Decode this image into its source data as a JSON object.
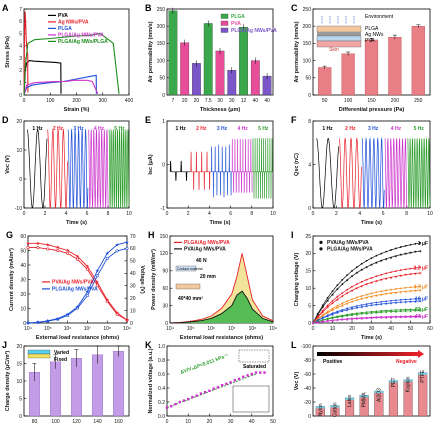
{
  "panels": {
    "A": {
      "label": "A",
      "xlabel": "Strain (%)",
      "ylabel": "Stress (kPa)",
      "xticks": [
        "0",
        "100",
        "200",
        "300",
        "400"
      ],
      "yticks": [
        "0",
        "1",
        "2",
        "3",
        "4",
        "5",
        "6",
        "7"
      ],
      "legend": [
        "PVA",
        "Ag NWs/PVA",
        "PLGA",
        "PLGA/Ag NWs/PVA",
        "PLGA/Ag NWs/PLGA"
      ]
    },
    "B": {
      "label": "B",
      "xlabel": "Thickness (μm)",
      "ylabel": "Air permeability (mm/s)",
      "xticks": [
        "7",
        "20",
        "20",
        "7.5",
        "30",
        "30",
        "12",
        "40",
        "40"
      ],
      "yticks": [
        "0",
        "50",
        "100",
        "150",
        "200",
        "250"
      ],
      "legend": [
        "PLGA",
        "PVA",
        "PLGA/Ag NWs/PVA"
      ]
    },
    "C": {
      "label": "C",
      "xlabel": "Differential pressure (Pa)",
      "ylabel": "Air permeability (mm/s)",
      "xticks": [
        "50",
        "100",
        "150",
        "200",
        "250"
      ],
      "yticks": [
        "0",
        "50",
        "100",
        "150",
        "200",
        "250"
      ],
      "annotations": [
        "Environment",
        "PLGA",
        "Ag NWs",
        "PVA",
        "Skin"
      ]
    },
    "D": {
      "label": "D",
      "xlabel": "Time (s)",
      "ylabel": "Voc (V)",
      "xticks": [
        "0",
        "2",
        "4",
        "6",
        "8",
        "10"
      ],
      "yticks": [
        "-10",
        "0",
        "10",
        "20"
      ],
      "freqs": [
        "1 Hz",
        "2 Hz",
        "3 Hz",
        "4 Hz",
        "5 Hz"
      ]
    },
    "E": {
      "label": "E",
      "xlabel": "Time (s)",
      "ylabel": "Isc (μA)",
      "xticks": [
        "0",
        "2",
        "4",
        "6",
        "8",
        "10"
      ],
      "yticks": [
        "-1",
        "0",
        "1"
      ],
      "freqs": [
        "1 Hz",
        "2 Hz",
        "3 Hz",
        "4 Hz",
        "5 Hz"
      ]
    },
    "F": {
      "label": "F",
      "xlabel": "Time (s)",
      "ylabel": "Qsc (nC)",
      "xticks": [
        "0",
        "2",
        "4",
        "6",
        "8",
        "10"
      ],
      "yticks": [
        "0",
        "4",
        "8"
      ],
      "freqs": [
        "1 Hz",
        "2 Hz",
        "3 Hz",
        "4 Hz",
        "5 Hz"
      ]
    },
    "G": {
      "label": "G",
      "xlabel": "External load resistance (ohms)",
      "ylabel": "Current density (mA/m²)",
      "ylabel2": "Voltage (V)",
      "xticks": [
        "10⁴",
        "10⁵",
        "10⁶",
        "10⁷",
        "10⁸",
        "10⁹"
      ],
      "yticks": [
        "0",
        "10",
        "20",
        "30",
        "40",
        "50",
        "60"
      ],
      "yticks2": [
        "0",
        "10",
        "20",
        "30",
        "40",
        "50",
        "60",
        "70"
      ],
      "legend": [
        "PVA/Ag NWs/PVA",
        "PLGA/Ag NWs/PVA"
      ]
    },
    "H": {
      "label": "H",
      "xlabel": "External load resistance (ohms)",
      "ylabel": "Power density (mW/m²)",
      "xticks": [
        "10⁴",
        "10⁵",
        "10⁶",
        "10⁷",
        "10⁸",
        "10⁹"
      ],
      "yticks": [
        "0",
        "30",
        "60",
        "90",
        "120",
        "150"
      ],
      "legend": [
        "PLGA/Ag NWs/PVA",
        "PVA/Ag NWs/PVA"
      ],
      "annotations": [
        "40 N",
        "Contact material",
        "20 mm",
        "40*40 mm²"
      ]
    },
    "I": {
      "label": "I",
      "xlabel": "Time (s)",
      "ylabel": "Charging voltage (V)",
      "xticks": [
        "0",
        "10",
        "20",
        "30",
        "40",
        "50",
        "60"
      ],
      "yticks": [
        "0",
        "5",
        "10",
        "15",
        "20",
        "25"
      ],
      "legend": [
        "PVA/Ag NWs/PVA",
        "PLGA/Ag NWs/PVA"
      ],
      "caps": [
        "1 μF",
        "2.2 μF",
        "4.7 μF",
        "10 μF",
        "22 μF",
        "47 μF"
      ]
    },
    "J": {
      "label": "J",
      "xlabel": "Total thickness (μm)",
      "ylabel": "Charge density (μC/m²)",
      "xticks": [
        "80",
        "100",
        "120",
        "140",
        "160"
      ],
      "yticks": [
        "0",
        "5",
        "10",
        "15",
        "20"
      ],
      "annotations": [
        "Varied",
        "Fixed"
      ]
    },
    "K": {
      "label": "K",
      "xlabel": "Pressure (kPa)",
      "ylabel": "Normalized voltage (a.u.)",
      "xticks": [
        "0",
        "10",
        "20",
        "30",
        "40",
        "50"
      ],
      "yticks": [
        "0.0",
        "0.2",
        "0.4",
        "0.6",
        "0.8",
        "1.0"
      ],
      "annotations": [
        "ΔV/V₀ΔP=0.011 kPa⁻¹",
        "Saturated"
      ]
    },
    "L": {
      "label": "L",
      "ylabel": "Voc (V)",
      "yticks": [
        "0",
        "-20",
        "-40",
        "-60",
        "-80",
        "-100"
      ],
      "annotations": [
        "Positive",
        "Negative"
      ]
    }
  },
  "chart_data": [
    {
      "panel": "A",
      "type": "line",
      "xlim": [
        0,
        400
      ],
      "ylim": [
        0,
        7
      ],
      "series": [
        {
          "name": "PVA",
          "color": "#000000",
          "x": [
            0,
            5,
            10,
            20,
            40,
            80,
            120,
            140,
            141
          ],
          "y": [
            0,
            2.0,
            2.6,
            2.8,
            2.75,
            2.7,
            2.65,
            2.6,
            0.1
          ]
        },
        {
          "name": "Ag NWs/PVA",
          "color": "#e8202a",
          "x": [
            0,
            2,
            4,
            6,
            8,
            10,
            12,
            14,
            15
          ],
          "y": [
            0,
            5.0,
            6.8,
            6.0,
            4.8,
            4.0,
            3.6,
            3.3,
            0.2
          ]
        },
        {
          "name": "PLGA",
          "color": "#1e4fd8",
          "x": [
            0,
            10,
            30,
            60,
            100,
            150,
            200,
            250,
            275,
            276
          ],
          "y": [
            0,
            0.6,
            0.8,
            0.9,
            1.0,
            1.1,
            1.3,
            1.5,
            1.6,
            0.1
          ]
        },
        {
          "name": "PLGA/Ag NWs/PVA",
          "color": "#cc33cc",
          "x": [
            0,
            10,
            40,
            80,
            120,
            160,
            190,
            220,
            240,
            260,
            281
          ],
          "y": [
            0,
            0.8,
            1.0,
            1.05,
            1.1,
            1.1,
            1.2,
            1.2,
            1.2,
            1.1,
            0.1
          ]
        },
        {
          "name": "PLGA/Ag NWs/PLGA",
          "color": "#1a8c1a",
          "x": [
            0,
            5,
            15,
            40,
            100,
            200,
            250,
            290,
            310,
            340,
            362
          ],
          "y": [
            0,
            2.4,
            4.2,
            4.5,
            4.6,
            4.8,
            4.85,
            5.0,
            4.7,
            4.2,
            0.1
          ]
        }
      ]
    },
    {
      "panel": "B",
      "type": "bar",
      "categories": [
        "7",
        "20",
        "20",
        "7.5",
        "30",
        "30",
        "12",
        "40",
        "40"
      ],
      "ylim": [
        0,
        250
      ],
      "series": [
        {
          "name": "PLGA",
          "values": [
            245,
            null,
            null,
            208,
            null,
            null,
            197,
            null,
            null
          ]
        },
        {
          "name": "PVA",
          "values": [
            null,
            152,
            null,
            null,
            128,
            null,
            null,
            100,
            null
          ]
        },
        {
          "name": "PLGA/Ag NWs/PVA",
          "values": [
            null,
            null,
            92,
            null,
            null,
            72,
            null,
            null,
            55
          ]
        }
      ]
    },
    {
      "panel": "C",
      "type": "bar",
      "categories": [
        "50",
        "100",
        "150",
        "200",
        "250"
      ],
      "values": [
        80,
        120,
        160,
        168,
        200
      ],
      "errors": [
        4,
        5,
        5,
        6,
        4
      ],
      "ylim": [
        0,
        250
      ]
    },
    {
      "panel": "D",
      "type": "line",
      "xlim": [
        0,
        10
      ],
      "ylim": [
        -10,
        20
      ],
      "peak_values": [
        17,
        17,
        17,
        17,
        17
      ],
      "trough_values": [
        -10,
        -10,
        -10,
        -10,
        -10
      ]
    },
    {
      "panel": "E",
      "type": "line",
      "xlim": [
        0,
        10
      ],
      "ylim": [
        -1,
        1.4
      ],
      "peak_values": [
        0.3,
        0.55,
        0.75,
        0.9,
        1.0
      ],
      "trough_values": [
        -0.25,
        -0.5,
        -0.7,
        -0.8,
        -0.8
      ]
    },
    {
      "panel": "F",
      "type": "line",
      "xlim": [
        0,
        10
      ],
      "ylim": [
        0,
        10
      ],
      "peak_values": [
        8,
        8,
        8,
        8,
        8
      ],
      "trough_values": [
        0,
        0,
        0,
        0,
        0
      ]
    },
    {
      "panel": "G",
      "type": "line",
      "x_log10": [
        4,
        4.5,
        5,
        5.5,
        6,
        6.5,
        7,
        7.5,
        8,
        8.5,
        9
      ],
      "ylim": [
        0,
        60
      ],
      "ylim2": [
        0,
        70
      ],
      "series": [
        {
          "name": "PVA/Ag NWs/PVA current",
          "axis": "left",
          "color": "#e8202a",
          "values": [
            52,
            52,
            51,
            50,
            48,
            44,
            37,
            26,
            15,
            6,
            2
          ]
        },
        {
          "name": "PLGA/Ag NWs/PVA current",
          "axis": "left",
          "color": "#e8202a",
          "values": [
            55,
            55,
            54,
            52,
            50,
            46,
            39,
            28,
            16,
            7,
            2
          ]
        },
        {
          "name": "PVA/Ag NWs/PVA voltage",
          "axis": "right",
          "color": "#1e4fd8",
          "values": [
            0,
            0.5,
            1.5,
            3,
            6,
            12,
            22,
            38,
            52,
            58,
            60
          ]
        },
        {
          "name": "PLGA/Ag NWs/PVA voltage",
          "axis": "right",
          "color": "#1e4fd8",
          "values": [
            0,
            0.6,
            1.8,
            3.5,
            7,
            13,
            25,
            42,
            56,
            63,
            65
          ]
        }
      ]
    },
    {
      "panel": "H",
      "type": "area",
      "x_log10": [
        4,
        4.5,
        5,
        5.5,
        6,
        6.5,
        7,
        7.25,
        7.5,
        7.75,
        8,
        8.5,
        9
      ],
      "ylim": [
        0,
        150
      ],
      "series": [
        {
          "name": "PLGA/Ag NWs/PVA",
          "color": "#e8202a",
          "fill": "#f0e08a",
          "values": [
            0,
            1,
            3,
            6,
            12,
            25,
            50,
            80,
            120,
            80,
            40,
            12,
            4
          ]
        },
        {
          "name": "PVA/Ag NWs/PVA",
          "color": "#111111",
          "fill": "#3ab54a",
          "values": [
            0,
            0.5,
            2,
            4,
            8,
            16,
            30,
            48,
            55,
            42,
            24,
            8,
            2
          ]
        }
      ]
    },
    {
      "panel": "I",
      "type": "line",
      "xlim": [
        0,
        60
      ],
      "ylim": [
        0,
        25
      ],
      "capacitors": [
        "1 μF",
        "2.2 μF",
        "4.7 μF",
        "10 μF",
        "22 μF",
        "47 μF"
      ],
      "series": [
        {
          "cap": "1 μF",
          "color": "#111111",
          "final": 23
        },
        {
          "cap": "2.2 μF",
          "color": "#e8202a",
          "final": 16
        },
        {
          "cap": "4.7 μF",
          "color": "#f08a1c",
          "final": 10.5
        },
        {
          "cap": "10 μF",
          "color": "#1e4fd8",
          "final": 7
        },
        {
          "cap": "22 μF",
          "color": "#2a9c2a",
          "final": 4
        },
        {
          "cap": "47 μF",
          "color": "#cc33cc",
          "final": 2
        }
      ]
    },
    {
      "panel": "J",
      "type": "bar",
      "categories": [
        "80",
        "100",
        "120",
        "140",
        "160"
      ],
      "values": [
        12.5,
        15.5,
        16.5,
        17.5,
        18.5
      ],
      "errors": [
        2.5,
        2,
        2.5,
        2.5,
        1.5
      ],
      "ylim": [
        0,
        20
      ]
    },
    {
      "panel": "K",
      "type": "scatter",
      "xlim": [
        0,
        50
      ],
      "ylim": [
        0,
        1.0
      ],
      "x": [
        0,
        2,
        4,
        6,
        8,
        10,
        12,
        14,
        16,
        18,
        20,
        22,
        24,
        26,
        28,
        30,
        32,
        34,
        36,
        38,
        40,
        42,
        44,
        46
      ],
      "y": [
        0.12,
        0.14,
        0.17,
        0.2,
        0.22,
        0.24,
        0.27,
        0.29,
        0.32,
        0.34,
        0.36,
        0.39,
        0.41,
        0.44,
        0.46,
        0.48,
        0.51,
        0.53,
        0.56,
        0.58,
        0.6,
        0.62,
        0.62,
        0.62
      ],
      "fit_slope": 0.011
    },
    {
      "panel": "L",
      "type": "bar",
      "categories": [
        "Nylon",
        "Cotton",
        "Latex",
        "PMMA",
        "Al2O3",
        "PET",
        "Kapton",
        "PTFE"
      ],
      "values": [
        -20,
        -22,
        -38,
        -43,
        -52,
        -74,
        -76,
        -90
      ],
      "errors": [
        2,
        2,
        2,
        2,
        2,
        3,
        2,
        2
      ],
      "ylim": [
        -100,
        0
      ]
    }
  ]
}
